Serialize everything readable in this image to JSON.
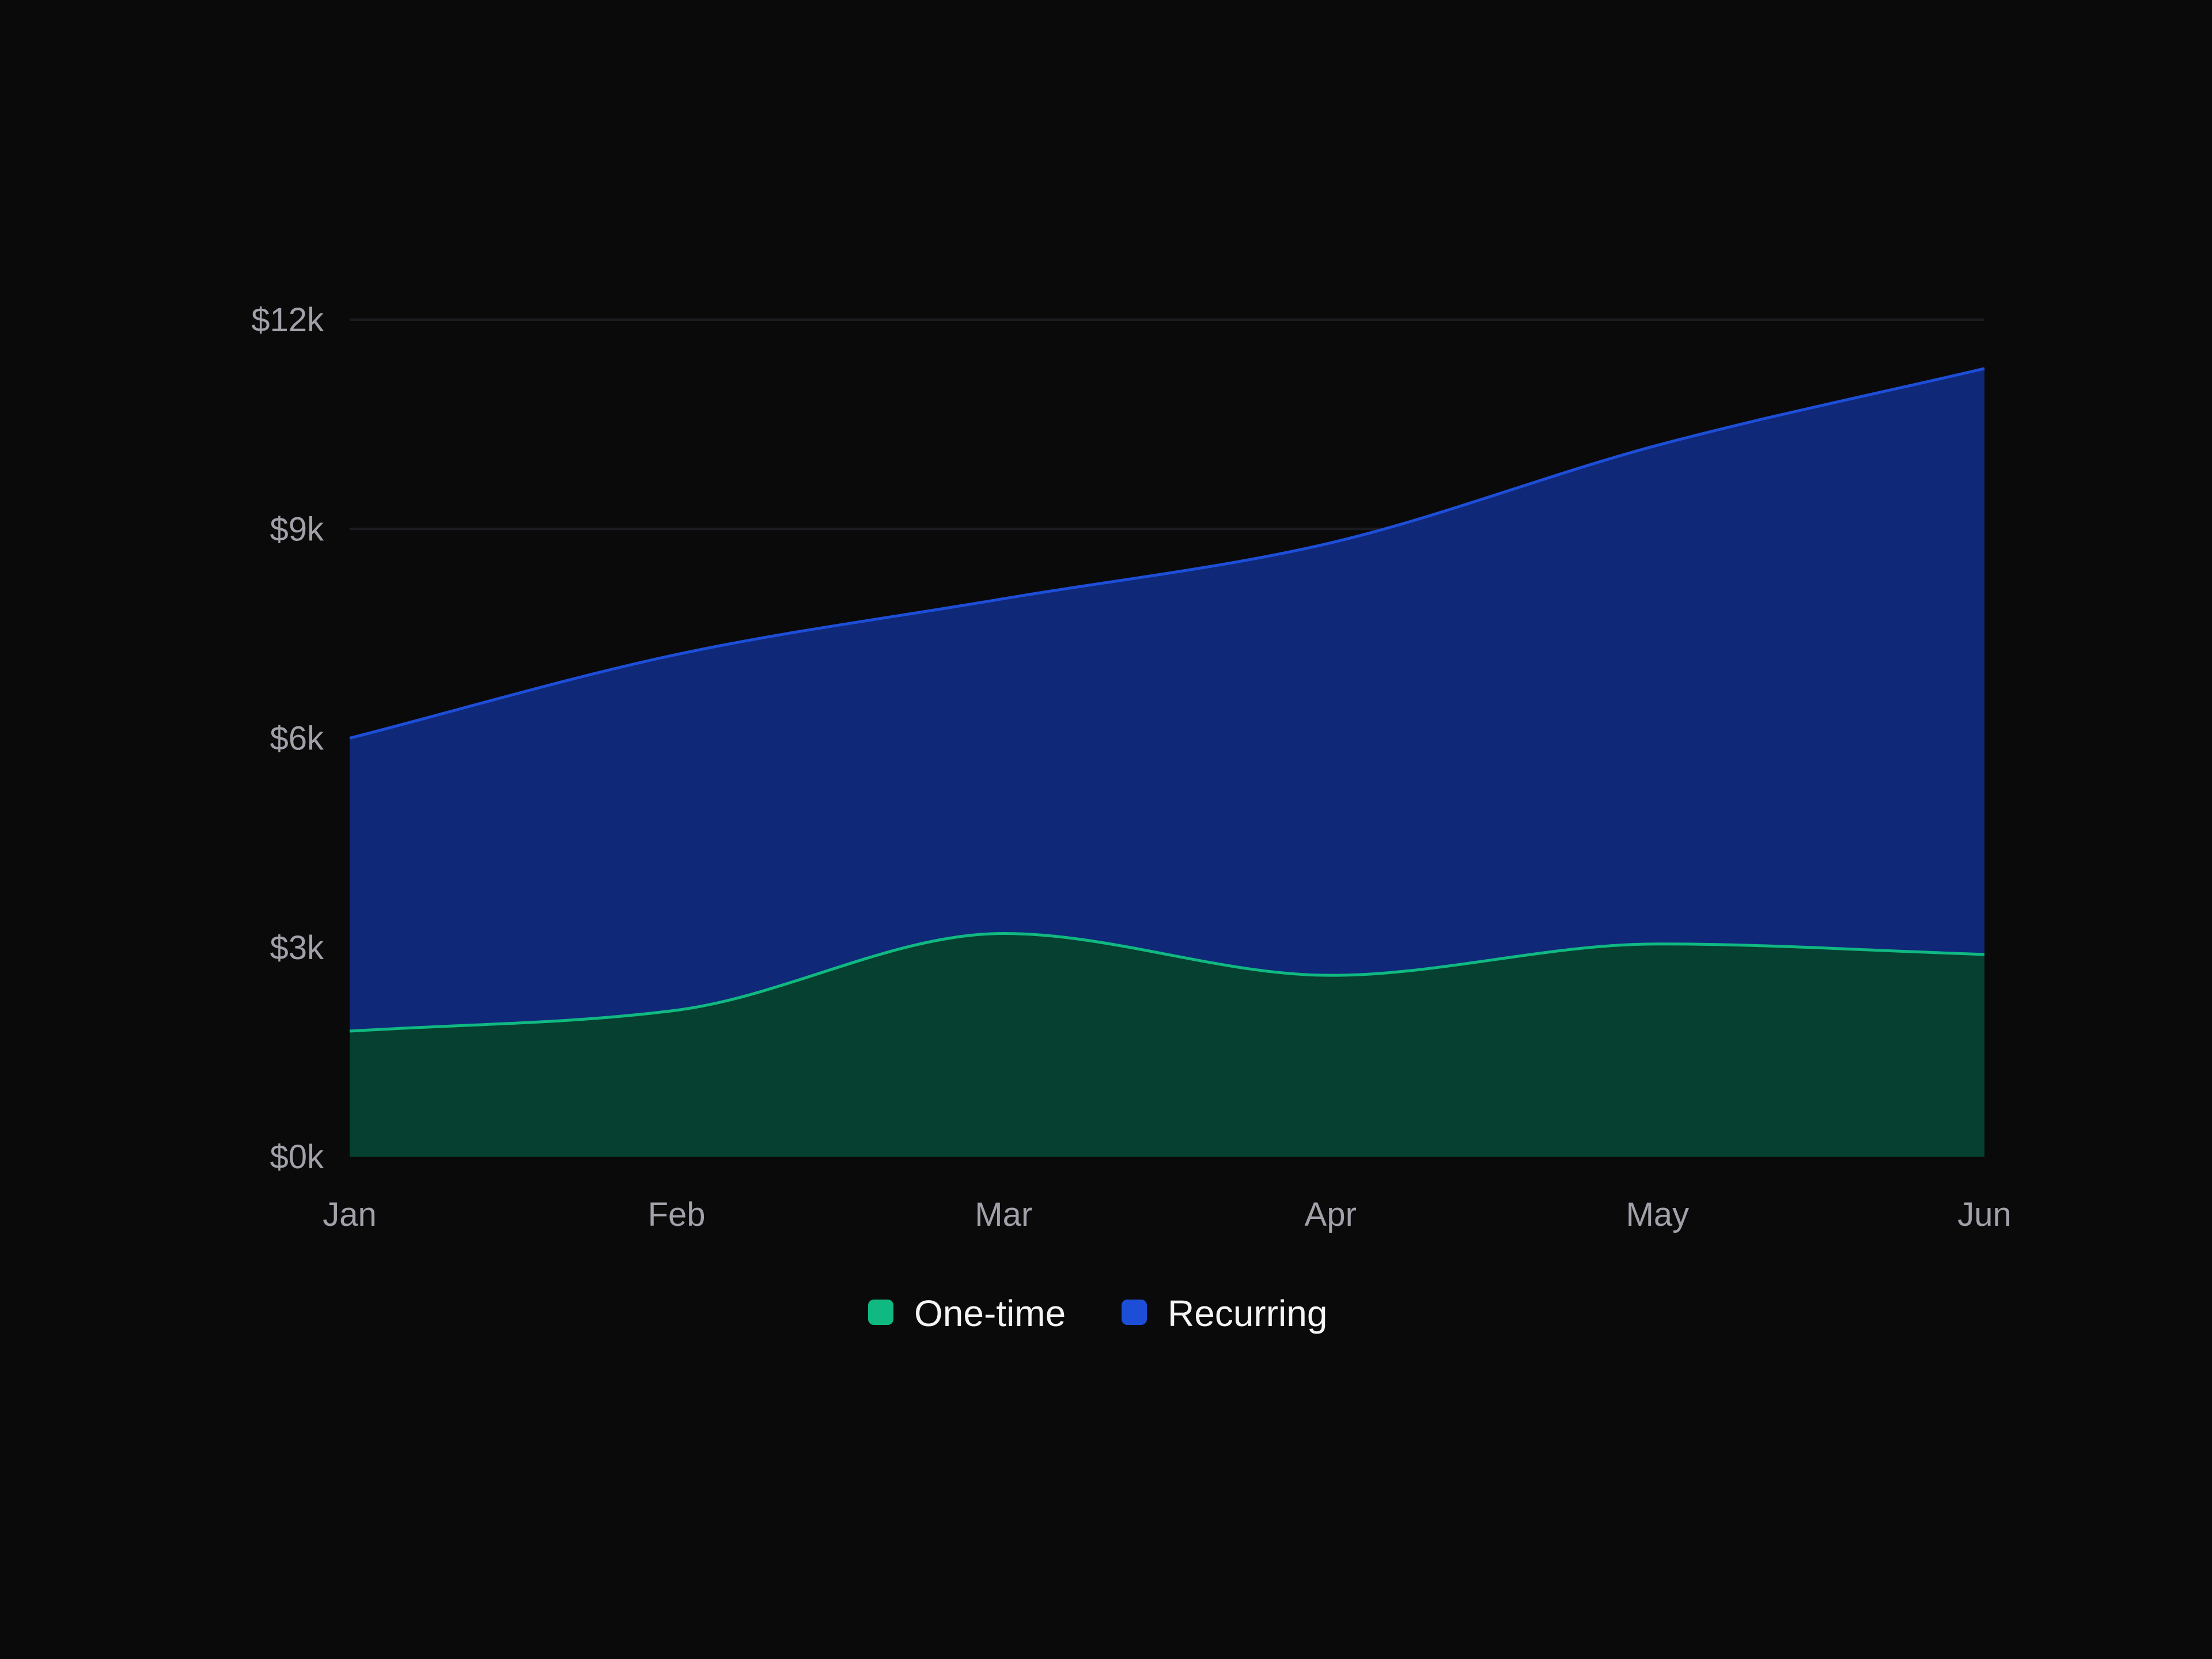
{
  "chart_data": {
    "type": "area",
    "stacked": true,
    "categories": [
      "Jan",
      "Feb",
      "Mar",
      "Apr",
      "May",
      "Jun"
    ],
    "series": [
      {
        "name": "One-time",
        "values": [
          1800,
          2100,
          3200,
          2600,
          3050,
          2900
        ],
        "line_color": "#10b981",
        "fill_color": "#064030",
        "legend_color": "#10b981"
      },
      {
        "name": "Recurring",
        "values": [
          4200,
          5100,
          4800,
          6200,
          7150,
          8400
        ],
        "line_color": "#1d4ed8",
        "fill_color": "#0f2878",
        "legend_color": "#1d4ed8"
      }
    ],
    "y_ticks": [
      "$0k",
      "$3k",
      "$6k",
      "$9k",
      "$12k"
    ],
    "y_tick_values": [
      0,
      3000,
      6000,
      9000,
      12000
    ],
    "ylim": [
      0,
      12000
    ],
    "grid": true,
    "legend_position": "bottom-center",
    "background": "#0a0a0b"
  }
}
